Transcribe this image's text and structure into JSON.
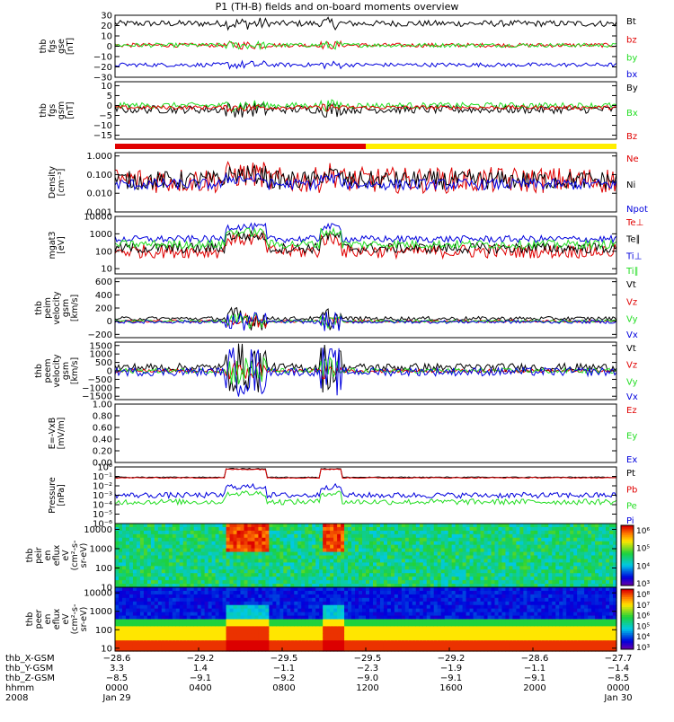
{
  "title": "P1 (TH-B) fields and on-board moments overview",
  "colors": {
    "black": "#000000",
    "red": "#e00000",
    "green": "#22dd22",
    "blue": "#0000dd",
    "yellow": "#ffee00",
    "frame": "#000000"
  },
  "chart_data": [
    {
      "type": "line",
      "ylabel": [
        "thb",
        "fgs",
        "gse",
        "[nT]"
      ],
      "ylim": [
        -30,
        30
      ],
      "ticks": [
        "30",
        "20",
        "10",
        "0",
        "−10",
        "−20",
        "−30"
      ],
      "tickvals": [
        30,
        20,
        10,
        0,
        -10,
        -20,
        -30
      ],
      "series": [
        {
          "name": "Bt",
          "color": "#000000",
          "baseline": 22,
          "noise": 3
        },
        {
          "name": "bz",
          "color": "#e00000",
          "baseline": 1,
          "noise": 2
        },
        {
          "name": "by",
          "color": "#22dd22",
          "baseline": 1,
          "noise": 2
        },
        {
          "name": "bx",
          "color": "#0000dd",
          "baseline": -18,
          "noise": 2
        }
      ]
    },
    {
      "type": "line",
      "ylabel": [
        "thb",
        "fgs",
        "gsm",
        "[nT]"
      ],
      "ylim": [
        -17,
        12
      ],
      "ticks": [
        "10",
        "5",
        "0",
        "−5",
        "−10",
        "−15"
      ],
      "tickvals": [
        10,
        5,
        0,
        -5,
        -10,
        -15
      ],
      "series": [
        {
          "name": "By",
          "color": "#000000",
          "baseline": -2,
          "noise": 2
        },
        {
          "name": "Bx",
          "color": "#22dd22",
          "baseline": 0,
          "noise": 1.5
        },
        {
          "name": "Bz",
          "color": "#e00000",
          "baseline": -1,
          "noise": 1
        }
      ]
    },
    {
      "type": "line",
      "ylabel": [
        "Density",
        "[cm⁻³]"
      ],
      "scale": "log",
      "ylim": [
        0.001,
        1.5
      ],
      "ticks": [
        "1.000",
        "0.100",
        "0.010",
        "0.001"
      ],
      "tickvals": [
        1,
        0.1,
        0.01,
        0.001
      ],
      "series": [
        {
          "name": "Ne",
          "color": "#e00000",
          "baseline": 0.05,
          "noise": 0.7
        },
        {
          "name": "Ni",
          "color": "#000000",
          "baseline": 0.05,
          "noise": 0.5
        },
        {
          "name": "Npot",
          "color": "#0000dd",
          "baseline": 0.03,
          "noise": 0.3
        }
      ]
    },
    {
      "type": "line",
      "ylabel": [
        "mgat3",
        "[eV]"
      ],
      "scale": "log",
      "ylim": [
        5,
        10000
      ],
      "ticks": [
        "10000",
        "1000",
        "100",
        "10"
      ],
      "tickvals": [
        10000,
        1000,
        100,
        10
      ],
      "series": [
        {
          "name": "Te⊥",
          "color": "#e00000",
          "baseline": 100,
          "noise": 0.4
        },
        {
          "name": "Te∥",
          "color": "#000000",
          "baseline": 150,
          "noise": 0.3
        },
        {
          "name": "Ti⊥",
          "color": "#0000dd",
          "baseline": 500,
          "noise": 0.2
        },
        {
          "name": "Ti∥",
          "color": "#22dd22",
          "baseline": 250,
          "noise": 0.25
        }
      ]
    },
    {
      "type": "line",
      "ylabel": [
        "thb",
        "peim",
        "velocity",
        "gsm",
        "[km/s]"
      ],
      "ylim": [
        -250,
        650
      ],
      "ticks": [
        "600",
        "400",
        "200",
        "0",
        "−200"
      ],
      "tickvals": [
        600,
        400,
        200,
        0,
        -200
      ],
      "series": [
        {
          "name": "Vt",
          "color": "#000000",
          "baseline": 40,
          "noise": 30
        },
        {
          "name": "Vz",
          "color": "#e00000",
          "baseline": 0,
          "noise": 20
        },
        {
          "name": "Vy",
          "color": "#22dd22",
          "baseline": 0,
          "noise": 20
        },
        {
          "name": "Vx",
          "color": "#0000dd",
          "baseline": -10,
          "noise": 25
        }
      ]
    },
    {
      "type": "line",
      "ylabel": [
        "thb",
        "peem",
        "velocity",
        "gsm",
        "[km/s]"
      ],
      "ylim": [
        -1700,
        1700
      ],
      "ticks": [
        "1500",
        "1000",
        "500",
        "0",
        "−500",
        "−1000",
        "−1500"
      ],
      "tickvals": [
        1500,
        1000,
        500,
        0,
        -500,
        -1000,
        -1500
      ],
      "series": [
        {
          "name": "Vt",
          "color": "#000000",
          "baseline": 200,
          "noise": 250
        },
        {
          "name": "Vz",
          "color": "#e00000",
          "baseline": 0,
          "noise": 100
        },
        {
          "name": "Vy",
          "color": "#22dd22",
          "baseline": 0,
          "noise": 150
        },
        {
          "name": "Vx",
          "color": "#0000dd",
          "baseline": -50,
          "noise": 250
        }
      ]
    },
    {
      "type": "line",
      "ylabel": [
        "E=-VxB",
        "[mV/m]"
      ],
      "ylim": [
        0,
        1
      ],
      "ticks": [
        "1.00",
        "0.80",
        "0.60",
        "0.40",
        "0.20",
        "0.00"
      ],
      "tickvals": [
        1,
        0.8,
        0.6,
        0.4,
        0.2,
        0
      ],
      "series": [
        {
          "name": "Ez",
          "color": "#e00000"
        },
        {
          "name": "Ey",
          "color": "#22dd22"
        },
        {
          "name": "Ex",
          "color": "#0000dd"
        }
      ]
    },
    {
      "type": "line",
      "ylabel": [
        "Pressure",
        "[nPa]"
      ],
      "scale": "log",
      "ylim": [
        1e-06,
        1
      ],
      "ticks": [
        "10⁰",
        "10⁻¹",
        "10⁻²",
        "10⁻³",
        "10⁻⁴",
        "10⁻⁵",
        "10⁻⁶"
      ],
      "tickvals": [
        1,
        0.1,
        0.01,
        0.001,
        0.0001,
        1e-05,
        1e-06
      ],
      "series": [
        {
          "name": "Pt",
          "color": "#000000",
          "baseline": 0.08,
          "noise": 0.05
        },
        {
          "name": "Pb",
          "color": "#e00000",
          "baseline": 0.07,
          "noise": 0.05
        },
        {
          "name": "Pe",
          "color": "#22dd22",
          "baseline": 0.0002,
          "noise": 0.3
        },
        {
          "name": "Pi",
          "color": "#0000dd",
          "baseline": 0.001,
          "noise": 0.3
        }
      ]
    },
    {
      "type": "heatmap",
      "ylabel": [
        "thb",
        "peir",
        "en",
        "eflux",
        "eV",
        "(cm²-s-",
        "sr-eV)"
      ],
      "scale": "log",
      "ylim": [
        10,
        20000
      ],
      "ticks": [
        "10000",
        "1000",
        "100",
        "10"
      ],
      "tickvals": [
        10000,
        1000,
        100,
        10
      ],
      "colorbar": [
        "10⁶",
        "10⁵",
        "10⁴",
        "10³"
      ]
    },
    {
      "type": "heatmap",
      "ylabel": [
        "thb",
        "peer",
        "en",
        "eflux",
        "eV",
        "(cm²-s-",
        "sr-eV)"
      ],
      "scale": "log",
      "ylim": [
        7,
        20000
      ],
      "ticks": [
        "10000",
        "1000",
        "100",
        "10"
      ],
      "tickvals": [
        10000,
        1000,
        100,
        10
      ],
      "colorbar": [
        "10⁸",
        "10⁷",
        "10⁶",
        "10⁵",
        "10⁴",
        "10³"
      ]
    }
  ],
  "bar_segments": [
    {
      "color": "#e00000",
      "from": 0.0,
      "to": 0.5
    },
    {
      "color": "#ffee00",
      "from": 0.5,
      "to": 1.0
    }
  ],
  "xaxis": {
    "rows": [
      {
        "label": "thb_X-GSM",
        "values": [
          "−28.6",
          "−29.2",
          "−29.5",
          "−29.5",
          "−29.2",
          "−28.6",
          "−27.7"
        ]
      },
      {
        "label": "thb_Y-GSM",
        "values": [
          "3.3",
          "1.4",
          "−1.1",
          "−2.3",
          "−1.9",
          "−1.1",
          "−1.4"
        ]
      },
      {
        "label": "thb_Z-GSM",
        "values": [
          "−8.5",
          "−9.1",
          "−9.2",
          "−9.0",
          "−9.1",
          "−9.1",
          "−8.5"
        ]
      },
      {
        "label": "hhmm",
        "values": [
          "0000",
          "0400",
          "0800",
          "1200",
          "1600",
          "2000",
          "0000"
        ]
      },
      {
        "label": "2008",
        "values": [
          "Jan 29",
          "",
          "",
          "",
          "",
          "",
          "Jan 30"
        ]
      }
    ]
  }
}
